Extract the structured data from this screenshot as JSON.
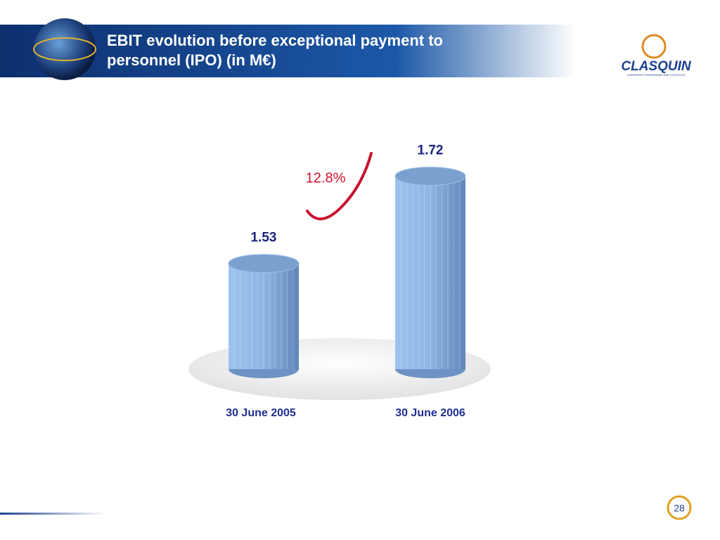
{
  "chart_data": {
    "type": "bar",
    "title": "EBIT evolution before exceptional payment to personnel (IPO) (in M€)",
    "categories": [
      "30 June 2005",
      "30 June 2006"
    ],
    "values": [
      1.53,
      1.72
    ],
    "color": "#8fb4e3",
    "ylim": [
      1.3,
      1.75
    ],
    "annotation": "12.8%"
  },
  "slide": {
    "logo": "CLASQUIN",
    "logo_tagline": "OVERSEAS FORWARDING AND LOGISTICS",
    "page_number": "28"
  }
}
